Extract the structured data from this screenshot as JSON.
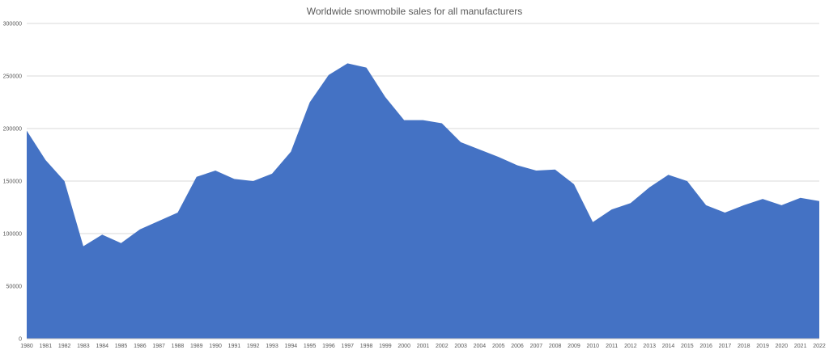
{
  "chart_data": {
    "type": "area",
    "title": "Worldwide snowmobile sales for all manufacturers",
    "xlabel": "",
    "ylabel": "",
    "ylim": [
      0,
      300000
    ],
    "yticks": [
      "0",
      "50000",
      "100000",
      "150000",
      "200000",
      "250000",
      "300000"
    ],
    "grid": true,
    "color": "#4472C4",
    "categories": [
      "1980",
      "1981",
      "1982",
      "1983",
      "1984",
      "1985",
      "1986",
      "1987",
      "1988",
      "1989",
      "1990",
      "1991",
      "1992",
      "1993",
      "1994",
      "1995",
      "1996",
      "1997",
      "1998",
      "1999",
      "2000",
      "2001",
      "2002",
      "2003",
      "2004",
      "2005",
      "2006",
      "2007",
      "2008",
      "2009",
      "2010",
      "2011",
      "2012",
      "2013",
      "2014",
      "2015",
      "2016",
      "2017",
      "2018",
      "2019",
      "2020",
      "2021",
      "2022"
    ],
    "values": [
      198000,
      170000,
      150000,
      88000,
      99000,
      91000,
      104000,
      112000,
      120000,
      154000,
      160000,
      152000,
      150000,
      157000,
      178000,
      225000,
      251000,
      262000,
      258000,
      230000,
      208000,
      208000,
      205000,
      187000,
      180000,
      173000,
      165000,
      160000,
      161000,
      147000,
      111000,
      123000,
      129000,
      144000,
      156000,
      150000,
      127000,
      120000,
      127000,
      133000,
      127000,
      134000,
      131000
    ]
  }
}
